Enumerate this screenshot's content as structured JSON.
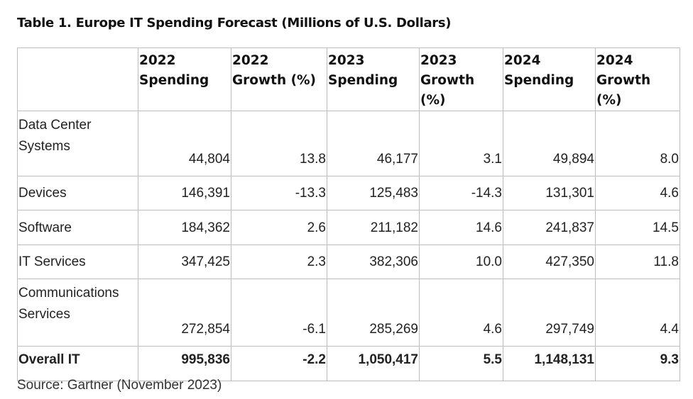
{
  "title": "Table 1. Europe IT Spending Forecast (Millions of U.S. Dollars)",
  "table": {
    "headers": [
      "",
      "2022 Spending",
      "2022 Growth (%)",
      "2023 Spending",
      "2023 Growth (%)",
      "2024 Spending",
      "2024 Growth (%)"
    ],
    "rows": [
      [
        "Data Center Systems",
        "44,804",
        "13.8",
        "46,177",
        "3.1",
        "49,894",
        "8.0"
      ],
      [
        "Devices",
        "146,391",
        "-13.3",
        "125,483",
        "-14.3",
        "131,301",
        "4.6"
      ],
      [
        "Software",
        "184,362",
        "2.6",
        "211,182",
        "14.6",
        "241,837",
        "14.5"
      ],
      [
        "IT Services",
        "347,425",
        "2.3",
        "382,306",
        "10.0",
        "427,350",
        "11.8"
      ],
      [
        "Communications Services",
        "272,854",
        "-6.1",
        "285,269",
        "4.6",
        "297,749",
        "4.4"
      ]
    ],
    "total": [
      "Overall IT",
      "995,836",
      "-2.2",
      "1,050,417",
      "5.5",
      "1,148,131",
      "9.3"
    ]
  },
  "source": "Source: Gartner (November 2023)"
}
